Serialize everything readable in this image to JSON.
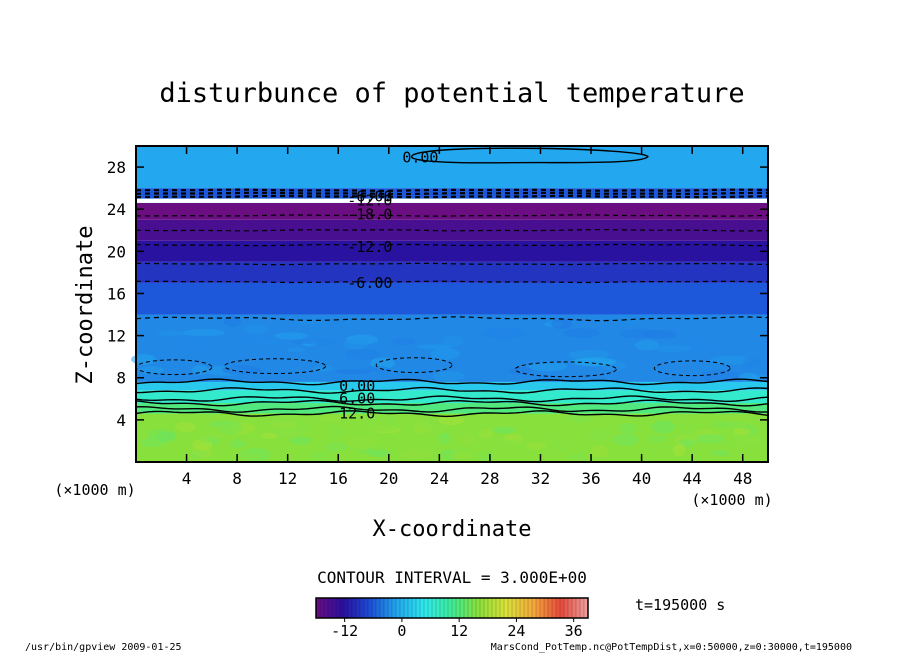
{
  "chart_data": {
    "type": "heatmap",
    "title": "disturbunce of potential temperature",
    "xlabel": "X-coordinate",
    "ylabel": "Z-coordinate",
    "x_unit_left": "(×1000 m)",
    "x_unit_right": "(×1000 m)",
    "xlim": [
      0,
      50
    ],
    "ylim": [
      0,
      30
    ],
    "x_ticks": [
      4,
      8,
      12,
      16,
      20,
      24,
      28,
      32,
      36,
      40,
      44,
      48
    ],
    "y_ticks": [
      4,
      8,
      12,
      16,
      20,
      24,
      28
    ],
    "contour_interval_text": "CONTOUR INTERVAL = 3.000E+00",
    "time_text": "t=195000 s",
    "colorbar": {
      "range": [
        -18,
        39
      ],
      "ticks": [
        -12,
        0,
        12,
        24,
        36
      ],
      "colors": [
        "#6a0e82",
        "#2b0f9e",
        "#1d4fd8",
        "#23a9ee",
        "#2fe8ee",
        "#3cec98",
        "#8be03a",
        "#d9e23a",
        "#f3a83a",
        "#e64a3a",
        "#f0a0a0"
      ]
    },
    "bands": [
      {
        "z0": 0,
        "z1": 4.6,
        "value": 16
      },
      {
        "z0": 4.6,
        "z1": 5.6,
        "value": 12
      },
      {
        "z0": 5.6,
        "z1": 6.8,
        "value": 7
      },
      {
        "z0": 6.8,
        "z1": 7.6,
        "value": 2
      },
      {
        "z0": 7.6,
        "z1": 14,
        "value": -3
      },
      {
        "z0": 14,
        "z1": 17,
        "value": -6
      },
      {
        "z0": 17,
        "z1": 19,
        "value": -9
      },
      {
        "z0": 19,
        "z1": 21,
        "value": -12
      },
      {
        "z0": 21,
        "z1": 23,
        "value": -15
      },
      {
        "z0": 23,
        "z1": 24.6,
        "value": -18
      },
      {
        "z0": 24.6,
        "z1": 25.0,
        "value": 3
      },
      {
        "z0": 25.0,
        "z1": 26.0,
        "value": -6
      },
      {
        "z0": 26.0,
        "z1": 30,
        "value": -1
      }
    ],
    "contour_labels": [
      {
        "x": 22.5,
        "z": 29.0,
        "text": "0.00"
      },
      {
        "x": 18.5,
        "z": 25.3,
        "text": "-6.00"
      },
      {
        "x": 18.5,
        "z": 24.9,
        "text": "-12.0"
      },
      {
        "x": 18.5,
        "z": 23.6,
        "text": "-18.0"
      },
      {
        "x": 18.5,
        "z": 20.5,
        "text": "-12.0"
      },
      {
        "x": 18.5,
        "z": 17.1,
        "text": "-6.00"
      },
      {
        "x": 17.5,
        "z": 7.3,
        "text": "0.00"
      },
      {
        "x": 17.5,
        "z": 6.1,
        "text": "6.00"
      },
      {
        "x": 17.5,
        "z": 4.7,
        "text": "12.0"
      }
    ],
    "solid_contours_z": [
      4.6,
      5.0,
      5.6,
      6.0,
      6.8,
      7.6
    ],
    "dashed_contours_z": [
      13.6,
      17.1,
      18.8,
      20.6,
      22.0,
      23.4,
      25.2,
      25.5,
      25.8
    ]
  },
  "footer": {
    "left": "/usr/bin/gpview   2009-01-25",
    "right": "MarsCond_PotTemp.nc@PotTempDist,x=0:50000,z=0:30000,t=195000"
  }
}
